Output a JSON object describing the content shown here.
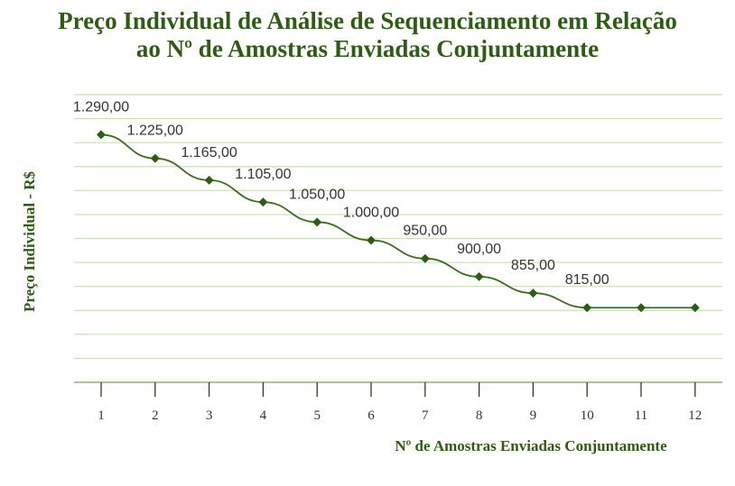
{
  "chart_data": {
    "type": "line",
    "title_lines": [
      "Preço Individual de Análise de Sequenciamento em Relação",
      "ao Nº de Amostras Enviadas Conjuntamente"
    ],
    "xlabel": "Nº de Amostras Enviadas Conjuntamente",
    "ylabel": "Preço Individual - R$",
    "x": [
      1,
      2,
      3,
      4,
      5,
      6,
      7,
      8,
      9,
      10,
      11,
      12
    ],
    "values": [
      1290,
      1225,
      1165,
      1105,
      1050,
      1000,
      950,
      900,
      855,
      815,
      815,
      815
    ],
    "data_labels": [
      "1.290,00",
      "1.225,00",
      "1.165,00",
      "1.105,00",
      "1.050,00",
      "1.000,00",
      "950,00",
      "900,00",
      "855,00",
      "815,00",
      "",
      ""
    ],
    "x_tick_labels": [
      "1",
      "2",
      "3",
      "4",
      "5",
      "6",
      "7",
      "8",
      "9",
      "10",
      "11",
      "12"
    ],
    "ylim": [
      610,
      1400
    ],
    "grid": true,
    "colors": {
      "line": "#3d6b1f",
      "marker": "#2e5c14",
      "grid": "#c9dfba",
      "title": "#2e5c14"
    }
  }
}
